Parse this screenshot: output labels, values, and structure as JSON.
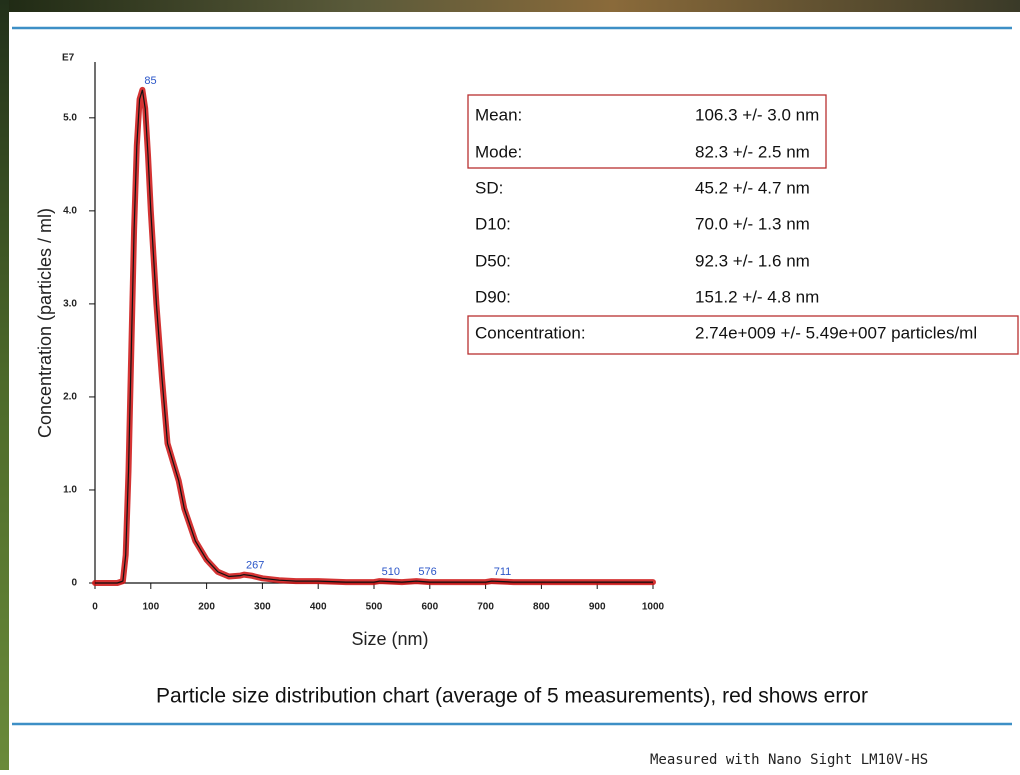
{
  "chart_data": {
    "type": "line",
    "y_label": "Concentration (particles / ml)",
    "y_unit": "E7",
    "x_label": "Size (nm)",
    "x": [
      0,
      40,
      50,
      55,
      60,
      65,
      70,
      75,
      80,
      85,
      90,
      95,
      100,
      110,
      120,
      130,
      140,
      150,
      160,
      180,
      200,
      220,
      240,
      260,
      267,
      280,
      300,
      330,
      360,
      400,
      450,
      500,
      510,
      550,
      576,
      600,
      650,
      700,
      711,
      750,
      800,
      850,
      900,
      950,
      1000
    ],
    "series": [
      {
        "color": "#111111",
        "error_color": "#cc1111",
        "values": [
          0,
          0,
          0.02,
          0.3,
          1.2,
          2.5,
          3.8,
          4.7,
          5.2,
          5.3,
          5.1,
          4.6,
          4.0,
          3.0,
          2.2,
          1.5,
          1.3,
          1.1,
          0.8,
          0.45,
          0.25,
          0.12,
          0.07,
          0.08,
          0.09,
          0.08,
          0.05,
          0.03,
          0.02,
          0.02,
          0.01,
          0.01,
          0.02,
          0.01,
          0.02,
          0.01,
          0.01,
          0.01,
          0.02,
          0.01,
          0.01,
          0.01,
          0.01,
          0.01,
          0.01
        ]
      }
    ],
    "annotations": [
      {
        "x": 85,
        "y": 5.3,
        "text": "85"
      },
      {
        "x": 267,
        "y": 0.09,
        "text": "267"
      },
      {
        "x": 510,
        "y": 0.02,
        "text": "510"
      },
      {
        "x": 576,
        "y": 0.02,
        "text": "576"
      },
      {
        "x": 711,
        "y": 0.02,
        "text": "711"
      }
    ],
    "xlim": [
      0,
      1000
    ],
    "xticks": [
      0,
      100,
      200,
      300,
      400,
      500,
      600,
      700,
      800,
      900,
      1000
    ],
    "ylim": [
      0,
      5.6
    ],
    "yticks": [
      0,
      {
        "value": 1,
        "label": "1.0"
      },
      {
        "value": 2,
        "label": "2.0"
      },
      {
        "value": 3,
        "label": "3.0"
      },
      {
        "value": 4,
        "label": "4.0"
      },
      {
        "value": 5,
        "label": "5.0"
      }
    ]
  },
  "stats": [
    {
      "label": "Mean:",
      "value": "106.3 +/- 3.0 nm"
    },
    {
      "label": "Mode:",
      "value": "82.3 +/- 2.5 nm"
    },
    {
      "label": "SD:",
      "value": "45.2 +/- 4.7 nm"
    },
    {
      "label": "D10:",
      "value": "70.0 +/- 1.3 nm"
    },
    {
      "label": "D50:",
      "value": "92.3 +/- 1.6 nm"
    },
    {
      "label": "D90:",
      "value": "151.2 +/- 4.8 nm"
    },
    {
      "label": "Concentration:",
      "value": "2.74e+009 +/- 5.49e+007 particles/ml"
    }
  ],
  "caption": "Particle size distribution chart (average of 5 measurements), red shows error",
  "footer": "Measured with Nano Sight LM10V-HS"
}
